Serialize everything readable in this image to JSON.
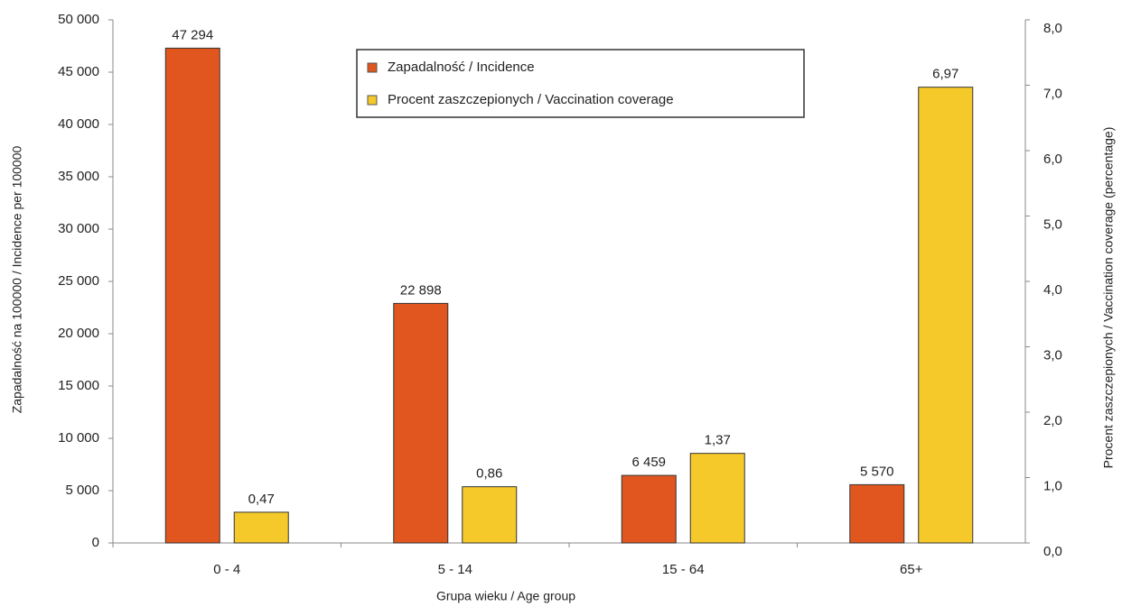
{
  "chart_data": {
    "type": "bar",
    "x_label": "Grupa wieku / Age group",
    "y_label": "Zapadalność na 100000 / Incidence per 100000",
    "y2_label": "Procent zaszczepionych / Vaccination coverage (percentage)",
    "categories": [
      "0 - 4",
      "5 - 14",
      "15 - 64",
      "65+"
    ],
    "series": [
      {
        "name": "Zapadalność / Incidence",
        "color": "#e0561e",
        "axis": "y",
        "values": [
          47294,
          22898,
          6459,
          5570
        ],
        "value_labels": [
          "47 294",
          "22 898",
          "6 459",
          "5 570"
        ]
      },
      {
        "name": "Procent zaszczepionych / Vaccination coverage",
        "color": "#f5c92a",
        "axis": "y2",
        "values": [
          0.47,
          0.86,
          1.37,
          6.97
        ],
        "value_labels": [
          "0,47",
          "0,86",
          "1,37",
          "6,97"
        ]
      }
    ],
    "ylim": [
      0,
      50000
    ],
    "yticks": [
      0,
      {
        "value": 5000,
        "label": "5 000"
      },
      {
        "value": 10000,
        "label": "10 000"
      },
      {
        "value": 15000,
        "label": "15 000"
      },
      {
        "value": 20000,
        "label": "20 000"
      },
      {
        "value": 25000,
        "label": "25 000"
      },
      {
        "value": 30000,
        "label": "30 000"
      },
      {
        "value": 35000,
        "label": "35 000"
      },
      {
        "value": 40000,
        "label": "40 000"
      },
      {
        "value": 45000,
        "label": "45 000"
      },
      {
        "value": 50000,
        "label": "50 000"
      }
    ],
    "y2lim": [
      0,
      8
    ],
    "y2ticks": [
      {
        "value": 0,
        "label": "0,0"
      },
      {
        "value": 1,
        "label": "1,0"
      },
      {
        "value": 2,
        "label": "2,0"
      },
      {
        "value": 3,
        "label": "3,0"
      },
      {
        "value": 4,
        "label": "4,0"
      },
      {
        "value": 5,
        "label": "5,0"
      },
      {
        "value": 6,
        "label": "6,0"
      },
      {
        "value": 7,
        "label": "7,0"
      },
      {
        "value": 8,
        "label": "8,0"
      }
    ],
    "legend": "top-center"
  }
}
